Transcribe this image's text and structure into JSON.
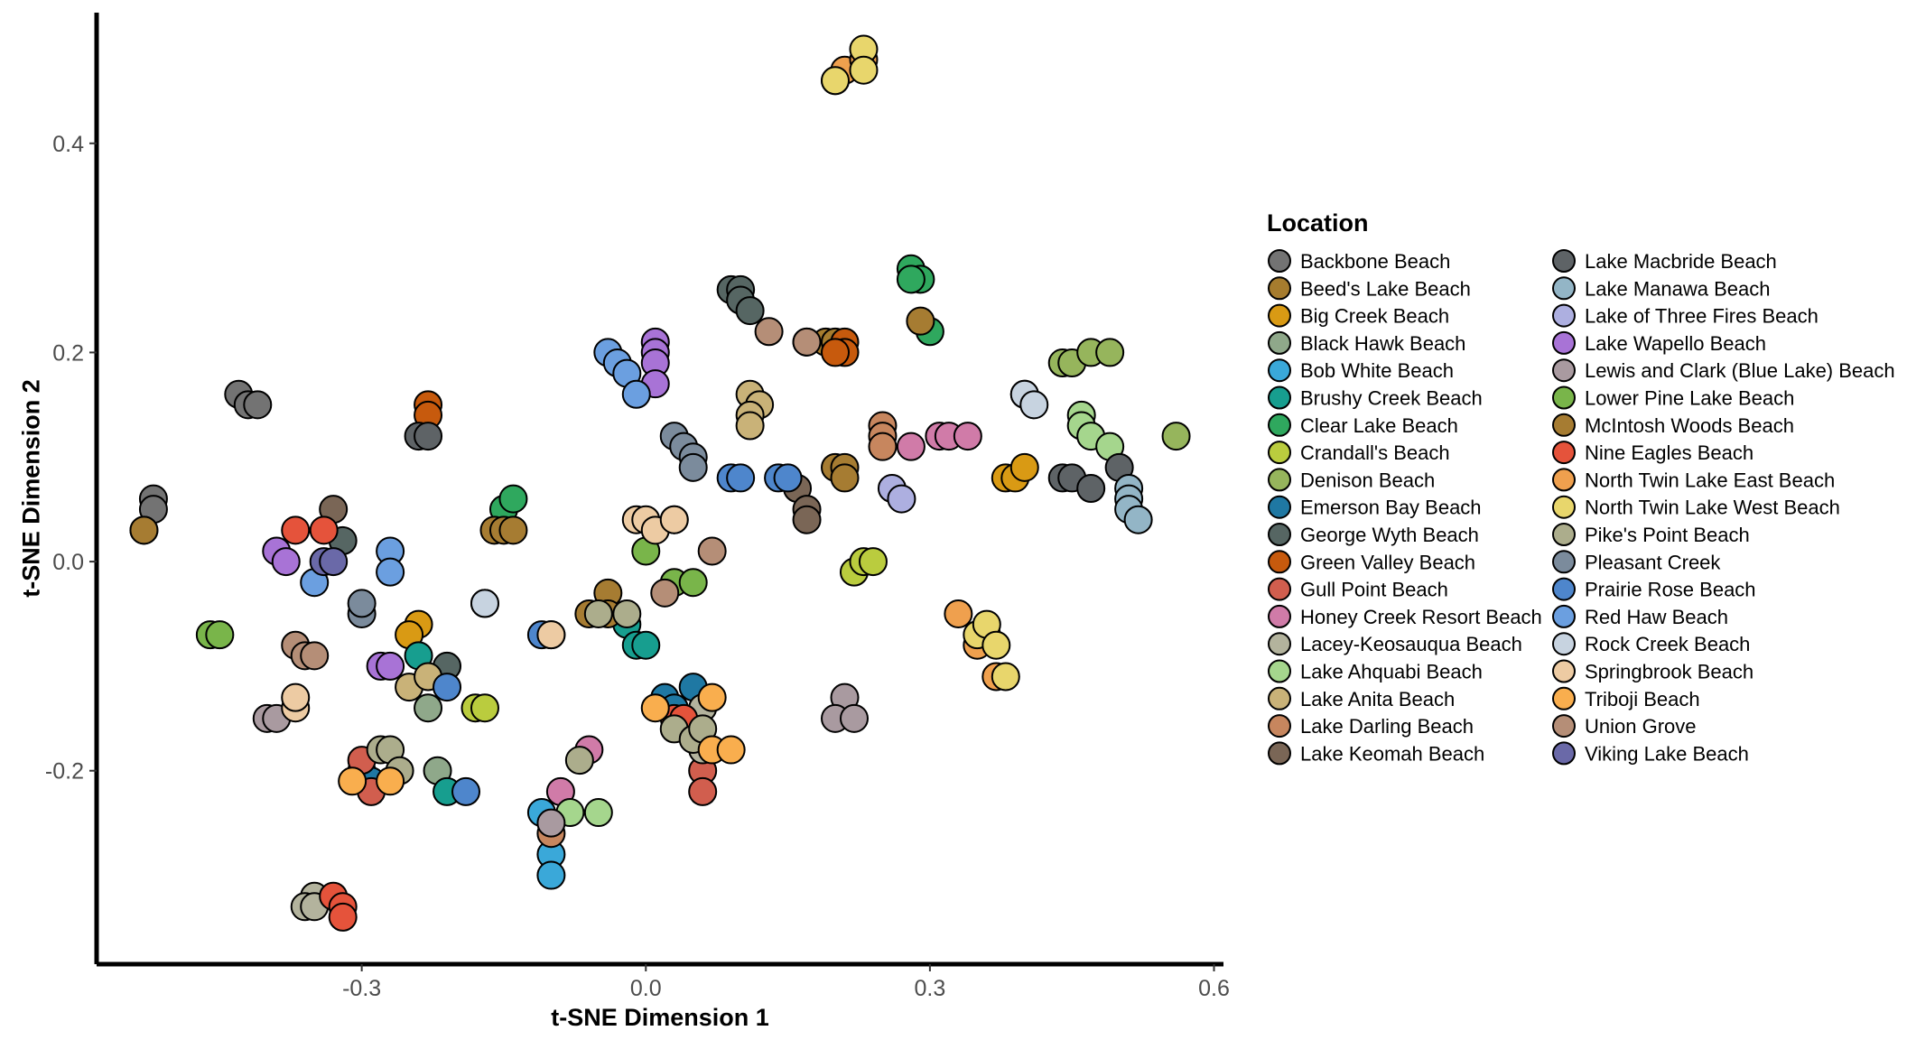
{
  "chart_data": {
    "type": "scatter",
    "title": "",
    "xlabel": "t-SNE Dimension 1",
    "ylabel": "t-SNE Dimension 2",
    "xlim": [
      -0.58,
      0.61
    ],
    "ylim": [
      -0.385,
      0.525
    ],
    "xticks": [
      -0.3,
      0.0,
      0.3,
      0.6
    ],
    "xtick_labels": [
      "-0.3",
      "0.0",
      "0.3",
      "0.6"
    ],
    "yticks": [
      -0.2,
      0.0,
      0.2,
      0.4
    ],
    "ytick_labels": [
      "-0.2",
      "0.0",
      "0.2",
      "0.4"
    ],
    "grid": false,
    "legend": {
      "title": "Location",
      "placement": "right",
      "columns": 2
    },
    "series": [
      {
        "name": "Backbone Beach",
        "color": "#737373",
        "points": [
          [
            -0.43,
            0.16
          ],
          [
            -0.42,
            0.15
          ],
          [
            -0.41,
            0.15
          ],
          [
            -0.52,
            0.06
          ],
          [
            -0.52,
            0.05
          ]
        ]
      },
      {
        "name": "Beed's Lake Beach",
        "color": "#A67C2E",
        "points": [
          [
            0.17,
            0.21
          ],
          [
            0.19,
            0.21
          ],
          [
            0.2,
            0.21
          ]
        ]
      },
      {
        "name": "Big Creek Beach",
        "color": "#D99A14",
        "points": [
          [
            -0.24,
            -0.06
          ],
          [
            -0.25,
            -0.07
          ],
          [
            0.38,
            0.08
          ],
          [
            0.39,
            0.08
          ],
          [
            0.4,
            0.09
          ]
        ]
      },
      {
        "name": "Black Hawk Beach",
        "color": "#8FA88A",
        "points": [
          [
            -0.23,
            -0.14
          ],
          [
            -0.22,
            -0.2
          ]
        ]
      },
      {
        "name": "Bob White Beach",
        "color": "#3AA8D9",
        "points": [
          [
            -0.11,
            -0.24
          ],
          [
            -0.1,
            -0.28
          ],
          [
            -0.1,
            -0.3
          ]
        ]
      },
      {
        "name": "Brushy Creek Beach",
        "color": "#179E8F",
        "points": [
          [
            -0.02,
            -0.06
          ],
          [
            -0.01,
            -0.08
          ],
          [
            0.0,
            -0.08
          ],
          [
            -0.24,
            -0.09
          ],
          [
            -0.21,
            -0.22
          ],
          [
            -0.1,
            -0.07
          ]
        ]
      },
      {
        "name": "Clear Lake Beach",
        "color": "#2FA85E",
        "points": [
          [
            -0.15,
            0.05
          ],
          [
            -0.14,
            0.06
          ],
          [
            0.28,
            0.28
          ],
          [
            0.29,
            0.27
          ],
          [
            0.28,
            0.27
          ],
          [
            0.3,
            0.22
          ]
        ]
      },
      {
        "name": "Crandall's Beach",
        "color": "#BACC3E",
        "points": [
          [
            0.22,
            -0.01
          ],
          [
            0.23,
            0.0
          ],
          [
            0.24,
            0.0
          ],
          [
            -0.18,
            -0.14
          ],
          [
            -0.17,
            -0.14
          ]
        ]
      },
      {
        "name": "Denison Beach",
        "color": "#96B55C",
        "points": [
          [
            0.44,
            0.19
          ],
          [
            0.45,
            0.19
          ],
          [
            0.47,
            0.2
          ],
          [
            0.49,
            0.2
          ],
          [
            0.56,
            0.12
          ]
        ]
      },
      {
        "name": "Emerson Bay Beach",
        "color": "#1F78A3",
        "points": [
          [
            0.02,
            -0.13
          ],
          [
            0.03,
            -0.14
          ],
          [
            0.05,
            -0.12
          ],
          [
            -0.3,
            -0.2
          ],
          [
            -0.29,
            -0.21
          ]
        ]
      },
      {
        "name": "George Wyth Beach",
        "color": "#566663",
        "points": [
          [
            0.09,
            0.26
          ],
          [
            0.1,
            0.26
          ],
          [
            0.1,
            0.25
          ],
          [
            0.11,
            0.24
          ],
          [
            -0.32,
            0.02
          ],
          [
            -0.21,
            -0.1
          ]
        ]
      },
      {
        "name": "Green Valley Beach",
        "color": "#C75A0D",
        "points": [
          [
            -0.23,
            0.15
          ],
          [
            -0.23,
            0.14
          ],
          [
            0.21,
            0.21
          ],
          [
            0.21,
            0.2
          ],
          [
            0.2,
            0.2
          ]
        ]
      },
      {
        "name": "Gull Point Beach",
        "color": "#D15E4E",
        "points": [
          [
            -0.3,
            -0.19
          ],
          [
            -0.29,
            -0.22
          ],
          [
            0.06,
            -0.2
          ],
          [
            0.06,
            -0.22
          ],
          [
            0.05,
            -0.16
          ]
        ]
      },
      {
        "name": "Honey Creek Resort Beach",
        "color": "#D07BA8",
        "points": [
          [
            0.31,
            0.12
          ],
          [
            0.32,
            0.12
          ],
          [
            0.34,
            0.12
          ],
          [
            0.28,
            0.11
          ],
          [
            -0.06,
            -0.18
          ],
          [
            -0.09,
            -0.22
          ]
        ]
      },
      {
        "name": "Lacey-Keosauqua Beach",
        "color": "#B3B39D",
        "points": [
          [
            -0.35,
            -0.32
          ],
          [
            -0.36,
            -0.33
          ],
          [
            -0.35,
            -0.33
          ],
          [
            0.06,
            -0.14
          ],
          [
            0.06,
            -0.18
          ]
        ]
      },
      {
        "name": "Lake Ahquabi Beach",
        "color": "#A5D68D",
        "points": [
          [
            0.46,
            0.14
          ],
          [
            0.46,
            0.13
          ],
          [
            0.47,
            0.12
          ],
          [
            0.49,
            0.11
          ],
          [
            -0.08,
            -0.24
          ],
          [
            -0.05,
            -0.24
          ]
        ]
      },
      {
        "name": "Lake Anita Beach",
        "color": "#C9B278",
        "points": [
          [
            0.11,
            0.16
          ],
          [
            0.12,
            0.15
          ],
          [
            0.11,
            0.14
          ],
          [
            0.11,
            0.13
          ],
          [
            -0.25,
            -0.12
          ],
          [
            -0.23,
            -0.11
          ]
        ]
      },
      {
        "name": "Lake Darling Beach",
        "color": "#C7865E",
        "points": [
          [
            0.25,
            0.13
          ],
          [
            0.25,
            0.12
          ],
          [
            0.25,
            0.11
          ],
          [
            -0.1,
            -0.26
          ]
        ]
      },
      {
        "name": "Lake Keomah Beach",
        "color": "#7A6656",
        "points": [
          [
            0.16,
            0.07
          ],
          [
            0.17,
            0.05
          ],
          [
            0.17,
            0.04
          ],
          [
            -0.33,
            0.05
          ]
        ]
      },
      {
        "name": "Lake Macbride Beach",
        "color": "#5E6366",
        "points": [
          [
            0.44,
            0.08
          ],
          [
            0.45,
            0.08
          ],
          [
            0.47,
            0.07
          ],
          [
            0.5,
            0.09
          ],
          [
            -0.24,
            0.12
          ],
          [
            -0.23,
            0.12
          ]
        ]
      },
      {
        "name": "Lake Manawa Beach",
        "color": "#93B5C6",
        "points": [
          [
            0.51,
            0.07
          ],
          [
            0.51,
            0.06
          ],
          [
            0.51,
            0.05
          ],
          [
            0.52,
            0.04
          ]
        ]
      },
      {
        "name": "Lake of Three Fires Beach",
        "color": "#ADAFE0",
        "points": [
          [
            0.26,
            0.07
          ],
          [
            0.27,
            0.06
          ]
        ]
      },
      {
        "name": "Lake Wapello Beach",
        "color": "#A873D6",
        "points": [
          [
            0.01,
            0.21
          ],
          [
            0.01,
            0.2
          ],
          [
            0.01,
            0.19
          ],
          [
            0.01,
            0.17
          ],
          [
            -0.39,
            0.01
          ],
          [
            -0.38,
            0.0
          ],
          [
            -0.28,
            -0.1
          ],
          [
            -0.27,
            -0.1
          ]
        ]
      },
      {
        "name": "Lewis and Clark (Blue Lake) Beach",
        "color": "#A99AA0",
        "points": [
          [
            0.21,
            -0.13
          ],
          [
            0.2,
            -0.15
          ],
          [
            0.22,
            -0.15
          ],
          [
            -0.4,
            -0.15
          ],
          [
            -0.39,
            -0.15
          ],
          [
            -0.1,
            -0.25
          ]
        ]
      },
      {
        "name": "Lower Pine Lake Beach",
        "color": "#79B54A",
        "points": [
          [
            -0.46,
            -0.07
          ],
          [
            -0.45,
            -0.07
          ],
          [
            0.0,
            0.01
          ],
          [
            0.03,
            -0.02
          ],
          [
            0.05,
            -0.02
          ]
        ]
      },
      {
        "name": "McIntosh Woods Beach",
        "color": "#A67C32",
        "points": [
          [
            -0.16,
            0.03
          ],
          [
            -0.15,
            0.03
          ],
          [
            -0.14,
            0.03
          ],
          [
            0.2,
            0.09
          ],
          [
            0.21,
            0.09
          ],
          [
            0.21,
            0.08
          ],
          [
            -0.04,
            -0.03
          ],
          [
            -0.04,
            -0.05
          ],
          [
            -0.06,
            -0.05
          ],
          [
            -0.53,
            0.03
          ],
          [
            -0.53,
            0.03
          ],
          [
            0.29,
            0.23
          ]
        ]
      },
      {
        "name": "Nine Eagles Beach",
        "color": "#E5533B",
        "points": [
          [
            -0.37,
            0.03
          ],
          [
            -0.34,
            0.03
          ],
          [
            -0.33,
            -0.32
          ],
          [
            -0.32,
            -0.33
          ],
          [
            -0.32,
            -0.34
          ],
          [
            0.03,
            -0.15
          ],
          [
            0.04,
            -0.15
          ]
        ]
      },
      {
        "name": "North Twin Lake East Beach",
        "color": "#EFA04E",
        "points": [
          [
            0.2,
            0.46
          ],
          [
            0.21,
            0.47
          ],
          [
            0.23,
            0.48
          ],
          [
            0.33,
            -0.05
          ],
          [
            0.37,
            -0.11
          ],
          [
            0.35,
            -0.08
          ],
          [
            0.36,
            -0.07
          ]
        ]
      },
      {
        "name": "North Twin Lake West Beach",
        "color": "#E8D66C",
        "points": [
          [
            0.2,
            0.46
          ],
          [
            0.23,
            0.49
          ],
          [
            0.23,
            0.47
          ],
          [
            0.35,
            -0.07
          ],
          [
            0.36,
            -0.06
          ],
          [
            0.37,
            -0.08
          ],
          [
            0.38,
            -0.11
          ]
        ]
      },
      {
        "name": "Pike's Point Beach",
        "color": "#ACAD8C",
        "points": [
          [
            -0.28,
            -0.18
          ],
          [
            -0.27,
            -0.18
          ],
          [
            -0.26,
            -0.2
          ],
          [
            -0.05,
            -0.05
          ],
          [
            -0.02,
            -0.05
          ],
          [
            0.03,
            -0.16
          ],
          [
            0.05,
            -0.17
          ],
          [
            -0.07,
            -0.19
          ],
          [
            0.06,
            -0.16
          ]
        ]
      },
      {
        "name": "Pleasant Creek",
        "color": "#7B8B9C",
        "points": [
          [
            0.03,
            0.12
          ],
          [
            0.04,
            0.11
          ],
          [
            0.05,
            0.1
          ],
          [
            0.05,
            0.09
          ],
          [
            -0.3,
            -0.05
          ],
          [
            -0.3,
            -0.04
          ]
        ]
      },
      {
        "name": "Prairie Rose Beach",
        "color": "#4E86CC",
        "points": [
          [
            0.09,
            0.08
          ],
          [
            0.1,
            0.08
          ],
          [
            0.14,
            0.08
          ],
          [
            0.15,
            0.08
          ],
          [
            0.03,
            0.04
          ],
          [
            -0.21,
            -0.12
          ],
          [
            -0.19,
            -0.22
          ],
          [
            -0.11,
            -0.07
          ]
        ]
      },
      {
        "name": "Red Haw Beach",
        "color": "#6B9FE0",
        "points": [
          [
            -0.04,
            0.2
          ],
          [
            -0.03,
            0.19
          ],
          [
            -0.02,
            0.18
          ],
          [
            -0.01,
            0.16
          ],
          [
            -0.27,
            0.01
          ],
          [
            -0.27,
            -0.01
          ],
          [
            -0.35,
            -0.02
          ]
        ]
      },
      {
        "name": "Rock Creek Beach",
        "color": "#C7D3E0",
        "points": [
          [
            0.4,
            0.16
          ],
          [
            0.4,
            0.16
          ],
          [
            0.41,
            0.15
          ],
          [
            -0.17,
            -0.04
          ],
          [
            -0.17,
            -0.04
          ]
        ]
      },
      {
        "name": "Springbrook Beach",
        "color": "#EDCBA3",
        "points": [
          [
            -0.01,
            0.04
          ],
          [
            0.0,
            0.04
          ],
          [
            0.01,
            0.03
          ],
          [
            0.03,
            0.04
          ],
          [
            -0.37,
            -0.14
          ],
          [
            -0.37,
            -0.13
          ],
          [
            -0.1,
            -0.07
          ]
        ]
      },
      {
        "name": "Triboji Beach",
        "color": "#F9AE4E",
        "points": [
          [
            -0.31,
            -0.21
          ],
          [
            -0.27,
            -0.21
          ],
          [
            0.01,
            -0.14
          ],
          [
            0.07,
            -0.13
          ],
          [
            0.07,
            -0.18
          ],
          [
            0.09,
            -0.18
          ]
        ]
      },
      {
        "name": "Union Grove",
        "color": "#B58E77",
        "points": [
          [
            0.13,
            0.22
          ],
          [
            0.17,
            0.21
          ],
          [
            -0.37,
            -0.08
          ],
          [
            -0.36,
            -0.09
          ],
          [
            -0.35,
            -0.09
          ],
          [
            0.07,
            0.01
          ],
          [
            0.02,
            -0.03
          ]
        ]
      },
      {
        "name": "Viking Lake Beach",
        "color": "#6A69A8",
        "points": [
          [
            -0.34,
            0.0
          ],
          [
            -0.33,
            0.0
          ]
        ]
      }
    ]
  }
}
